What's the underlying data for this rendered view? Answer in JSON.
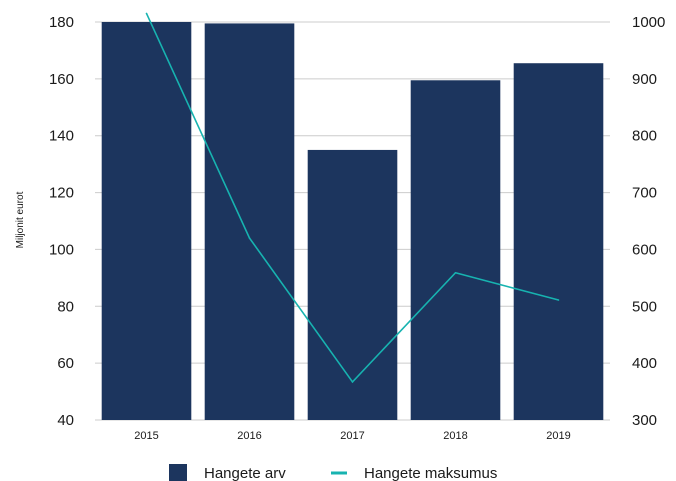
{
  "chart_data": {
    "type": "bar",
    "categories": [
      "2015",
      "2016",
      "2017",
      "2018",
      "2019"
    ],
    "series": [
      {
        "name": "Hangete arv",
        "type": "bar",
        "axis": "left",
        "values": [
          182,
          179.5,
          135,
          159.5,
          165.5
        ],
        "color": "#1c355e"
      },
      {
        "name": "Hangete maksumus",
        "type": "line",
        "axis": "right",
        "values": [
          1015,
          620,
          367,
          559,
          511
        ],
        "color": "#17b3b0"
      }
    ],
    "ylabel": "Miljonit eurot",
    "ylim": [
      40,
      180
    ],
    "y_ticks": [
      40,
      60,
      80,
      100,
      120,
      140,
      160,
      180
    ],
    "y2lim": [
      300,
      1000
    ],
    "y2_ticks": [
      300,
      400,
      500,
      600,
      700,
      800,
      900,
      1000
    ],
    "grid": true,
    "legend": "bottom"
  }
}
